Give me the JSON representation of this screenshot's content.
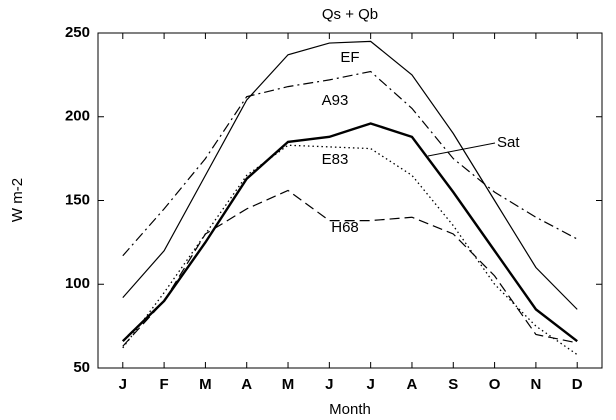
{
  "chart_data": {
    "type": "line",
    "title": "Qs + Qb",
    "xlabel": "Month",
    "ylabel": "W m-2",
    "categories": [
      "J",
      "F",
      "M",
      "A",
      "M",
      "J",
      "J",
      "A",
      "S",
      "O",
      "N",
      "D"
    ],
    "ylim": [
      50,
      250
    ],
    "yticks": [
      50,
      100,
      150,
      200,
      250
    ],
    "grid": false,
    "series": [
      {
        "name": "EF",
        "color": "#000000",
        "style": "solid",
        "values": [
          92,
          120,
          165,
          210,
          237,
          244,
          245,
          225,
          190,
          150,
          110,
          85
        ]
      },
      {
        "name": "A93",
        "color": "#000000",
        "style": "dashdot",
        "values": [
          117,
          145,
          175,
          212,
          218,
          222,
          227,
          205,
          175,
          155,
          140,
          127
        ]
      },
      {
        "name": "Sat",
        "color": "#000000",
        "style": "thick",
        "values": [
          66,
          90,
          125,
          163,
          185,
          188,
          196,
          188,
          155,
          120,
          85,
          66
        ]
      },
      {
        "name": "E83",
        "color": "#000000",
        "style": "dotted",
        "values": [
          62,
          95,
          130,
          165,
          183,
          182,
          181,
          165,
          135,
          100,
          75,
          58
        ]
      },
      {
        "name": "H68",
        "color": "#000000",
        "style": "dashed",
        "values": [
          63,
          90,
          130,
          145,
          156,
          138,
          138,
          140,
          130,
          105,
          70,
          65
        ]
      }
    ]
  }
}
